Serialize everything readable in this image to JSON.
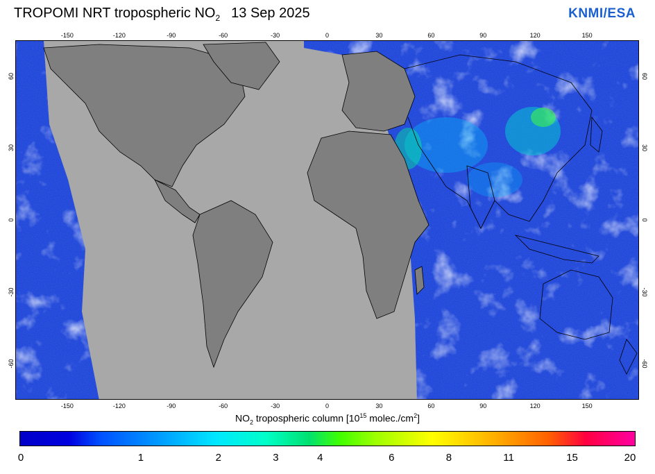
{
  "header": {
    "title_main": "TROPOMI  NRT tropospheric NO",
    "title_sub": "2",
    "date": "13 Sep 2025",
    "brand": "KNMI/ESA"
  },
  "map": {
    "lon_ticks": [
      "-150",
      "-120",
      "-90",
      "-60",
      "-30",
      "0",
      "30",
      "60",
      "90",
      "120",
      "150"
    ],
    "lon_values": [
      -150,
      -120,
      -90,
      -60,
      -30,
      0,
      30,
      60,
      90,
      120,
      150
    ],
    "lat_ticks": [
      "60",
      "30",
      "0",
      "-30",
      "-60"
    ],
    "lat_values": [
      60,
      30,
      0,
      -30,
      -60
    ],
    "lon_range": [
      -180,
      180
    ],
    "lat_range": [
      -75,
      75
    ],
    "colors": {
      "no_data": "#a8a8a8",
      "land": "#7f7f7f",
      "low_values": "#1e3cd2",
      "cloud": "#d0d8f0"
    }
  },
  "colorbar": {
    "title_main": "NO",
    "title_sub": "2",
    "title_rest": " tropospheric column [10",
    "title_sup": "15",
    "title_unit": " molec./cm",
    "title_unit_sup": "2",
    "title_end": "]",
    "labels": [
      "0",
      "1",
      "2",
      "3",
      "4",
      "6",
      "8",
      "11",
      "15",
      "20"
    ],
    "label_positions": [
      0,
      0.197,
      0.323,
      0.416,
      0.488,
      0.604,
      0.697,
      0.794,
      0.897,
      1.0
    ]
  }
}
